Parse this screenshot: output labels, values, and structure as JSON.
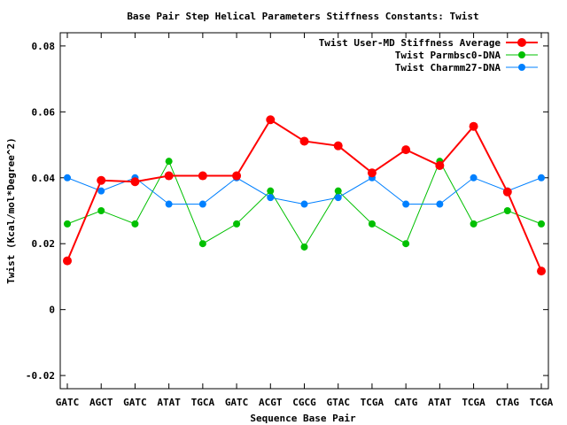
{
  "chart_data": {
    "type": "line",
    "title": "Base Pair Step Helical Parameters Stiffness Constants: Twist",
    "xlabel": "Sequence Base Pair",
    "ylabel": "Twist (Kcal/mol*Degree^2)",
    "categories": [
      "GATC",
      "AGCT",
      "GATC",
      "ATAT",
      "TGCA",
      "GATC",
      "ACGT",
      "CGCG",
      "GTAC",
      "TCGA",
      "CATG",
      "ATAT",
      "TCGA",
      "CTAG",
      "TCGA"
    ],
    "ylim": [
      -0.024,
      0.084
    ],
    "yticks": [
      -0.02,
      0,
      0.02,
      0.04,
      0.06,
      0.08
    ],
    "ytick_labels": [
      "-0.02",
      "0",
      "0.02",
      "0.04",
      "0.06",
      "0.08"
    ],
    "grid": false,
    "legend_position": "top-right",
    "series": [
      {
        "name": "Twist User-MD Stiffness Average",
        "color": "#ff0000",
        "marker": "large-circle",
        "values": [
          0.0148,
          0.0392,
          0.0388,
          0.0406,
          0.0406,
          0.0406,
          0.0576,
          0.0511,
          0.0497,
          0.0415,
          0.0485,
          0.0437,
          0.0556,
          0.0357,
          0.0117
        ]
      },
      {
        "name": "Twist Parmbsc0-DNA",
        "color": "#00c000",
        "marker": "circle",
        "values": [
          0.026,
          0.03,
          0.026,
          0.045,
          0.02,
          0.026,
          0.036,
          0.019,
          0.036,
          0.026,
          0.02,
          0.045,
          0.026,
          0.03,
          0.026
        ]
      },
      {
        "name": "Twist Charmm27-DNA",
        "color": "#0080ff",
        "marker": "circle",
        "values": [
          0.04,
          0.036,
          0.04,
          0.032,
          0.032,
          0.04,
          0.034,
          0.032,
          0.034,
          0.04,
          0.032,
          0.032,
          0.04,
          0.036,
          0.04
        ]
      }
    ]
  }
}
